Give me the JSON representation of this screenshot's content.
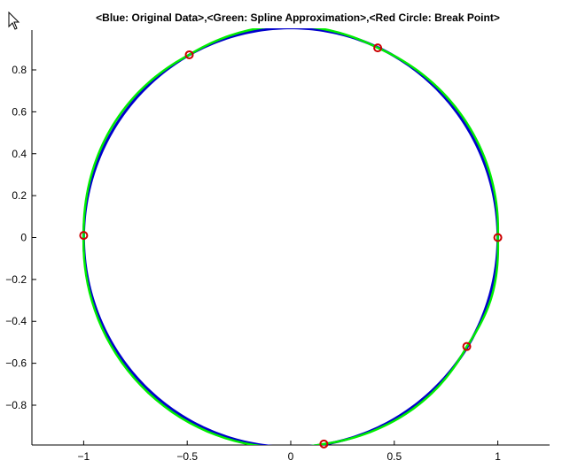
{
  "chart_data": {
    "type": "line",
    "title": "<Blue: Original Data>,<Green: Spline Approximation>,<Red Circle: Break Point>",
    "xlabel": "",
    "ylabel": "",
    "xlim": [
      -1.25,
      1.25
    ],
    "ylim": [
      -0.99,
      0.99
    ],
    "grid": false,
    "x_ticks": [
      -1,
      -0.5,
      0,
      0.5,
      1
    ],
    "x_tick_labels": [
      "−1",
      "−0.5",
      "0",
      "0.5",
      "1"
    ],
    "y_ticks": [
      -0.8,
      -0.6,
      -0.4,
      -0.2,
      0,
      0.2,
      0.4,
      0.6,
      0.8
    ],
    "y_tick_labels": [
      "−0.8",
      "−0.6",
      "−0.4",
      "−0.2",
      "0",
      "0.2",
      "0.4",
      "0.6",
      "0.8"
    ],
    "series": [
      {
        "kind": "line",
        "color": "#0000cc",
        "curve": "unit-circle",
        "center": [
          0,
          0
        ],
        "radius": 1
      },
      {
        "kind": "line",
        "color": "#00ee00",
        "curve": "periodic-spline",
        "points": [
          {
            "x": 1.0,
            "y": 0.0
          },
          {
            "x": 0.42,
            "y": 0.905
          },
          {
            "x": -0.49,
            "y": 0.872
          },
          {
            "x": -1.0,
            "y": 0.01
          },
          {
            "x": 0.16,
            "y": -0.985
          },
          {
            "x": 0.85,
            "y": -0.52
          }
        ]
      },
      {
        "kind": "scatter",
        "color": "#cc0000",
        "marker": "circle",
        "points": [
          {
            "x": 1.0,
            "y": 0.0
          },
          {
            "x": 0.42,
            "y": 0.905
          },
          {
            "x": -0.49,
            "y": 0.872
          },
          {
            "x": -1.0,
            "y": 0.01
          },
          {
            "x": 0.16,
            "y": -0.985
          },
          {
            "x": 0.85,
            "y": -0.52
          }
        ]
      }
    ]
  },
  "icons": {
    "cursor": "mouse-pointer-icon"
  }
}
